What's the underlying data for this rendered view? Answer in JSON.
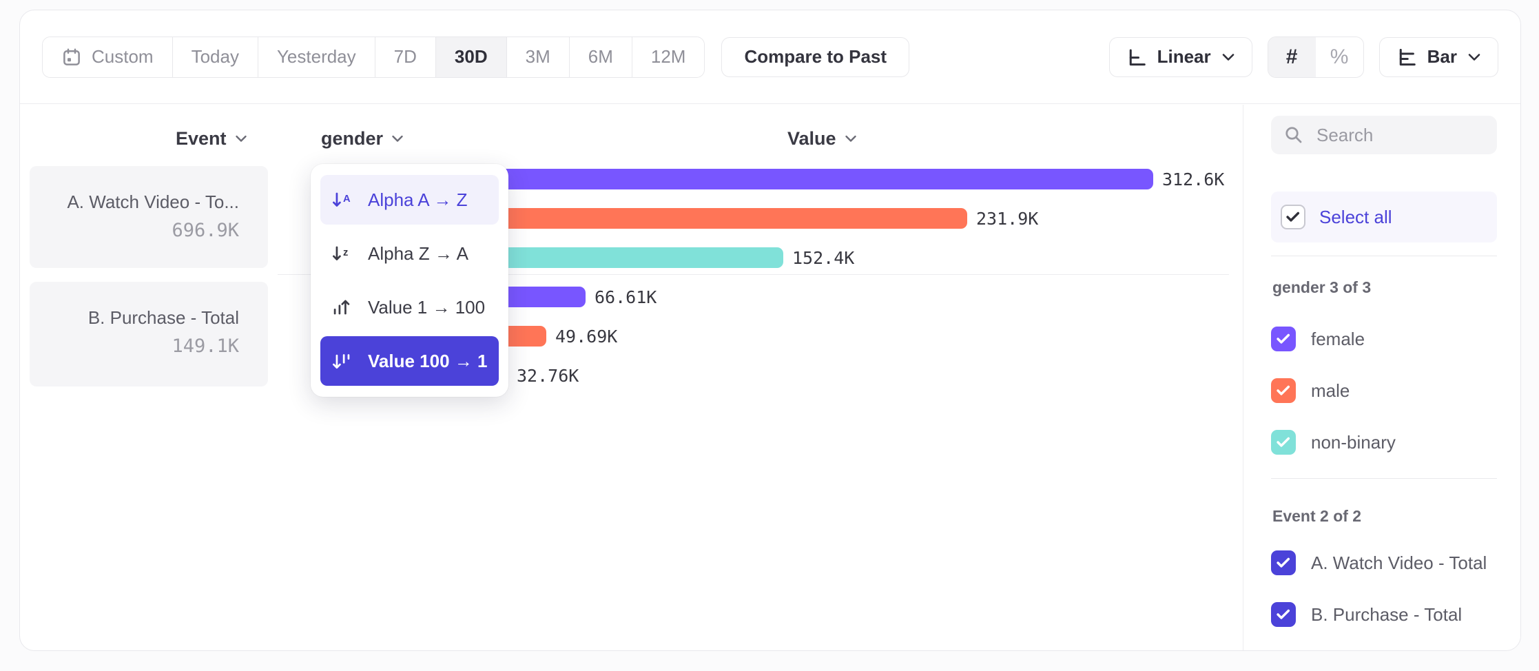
{
  "toolbar": {
    "date_ranges": [
      {
        "label": "Custom",
        "icon": "calendar-icon",
        "selected": false
      },
      {
        "label": "Today",
        "selected": false
      },
      {
        "label": "Yesterday",
        "selected": false
      },
      {
        "label": "7D",
        "selected": false
      },
      {
        "label": "30D",
        "selected": true
      },
      {
        "label": "3M",
        "selected": false
      },
      {
        "label": "6M",
        "selected": false
      },
      {
        "label": "12M",
        "selected": false
      }
    ],
    "compare_label": "Compare to Past",
    "scale_label": "Linear",
    "format_absolute": "#",
    "format_percent": "%",
    "chart_type_label": "Bar"
  },
  "columns": {
    "event_label": "Event",
    "breakdown_label": "gender",
    "value_label": "Value"
  },
  "event_cards": [
    {
      "name": "A. Watch Video - To...",
      "value": "696.9K"
    },
    {
      "name": "B. Purchase - Total",
      "value": "149.1K"
    }
  ],
  "sort_menu": {
    "items": [
      {
        "label": "Alpha A → Z",
        "icon": "sort-alpha-asc-icon",
        "state": "hover"
      },
      {
        "label": "Alpha Z → A",
        "icon": "sort-alpha-desc-icon",
        "state": "default"
      },
      {
        "label": "Value 1 → 100",
        "icon": "sort-value-asc-icon",
        "state": "default"
      },
      {
        "label": "Value 100 → 1",
        "icon": "sort-value-desc-icon",
        "state": "selected"
      }
    ]
  },
  "chart_data": {
    "type": "bar",
    "orientation": "horizontal",
    "sort": "value 100 → 1",
    "value_axis_max": 312600,
    "groups": [
      {
        "event": "A. Watch Video - Total",
        "bars": [
          {
            "category": "female",
            "value": 312600,
            "label": "312.6K",
            "color": "#7856ff"
          },
          {
            "category": "male",
            "value": 231900,
            "label": "231.9K",
            "color": "#ff7557"
          },
          {
            "category": "non-binary",
            "value": 152400,
            "label": "152.4K",
            "color": "#80e1d9"
          }
        ]
      },
      {
        "event": "B. Purchase - Total",
        "bars": [
          {
            "category": "female",
            "value": 66610,
            "label": "66.61K",
            "color": "#7856ff"
          },
          {
            "category": "male",
            "value": 49690,
            "label": "49.69K",
            "color": "#ff7557"
          },
          {
            "category": "non-binary",
            "value": 32760,
            "label": "32.76K",
            "color": "#80e1d9"
          }
        ]
      }
    ]
  },
  "sidebar": {
    "search_placeholder": "Search",
    "select_all_label": "Select all",
    "sections": [
      {
        "header": "gender 3 of 3",
        "rows": [
          {
            "label": "female",
            "checked": true,
            "color": "#7856ff"
          },
          {
            "label": "male",
            "checked": true,
            "color": "#ff7557"
          },
          {
            "label": "non-binary",
            "checked": true,
            "color": "#80e1d9"
          }
        ]
      },
      {
        "header": "Event 2 of 2",
        "rows": [
          {
            "label": "A. Watch Video - Total",
            "checked": true,
            "color": "#4b42d9"
          },
          {
            "label": "B. Purchase - Total",
            "checked": true,
            "color": "#4b42d9"
          }
        ]
      }
    ]
  },
  "colors": {
    "accent": "#4b42d9",
    "bar_purple": "#7856ff",
    "bar_coral": "#ff7557",
    "bar_teal": "#80e1d9"
  }
}
